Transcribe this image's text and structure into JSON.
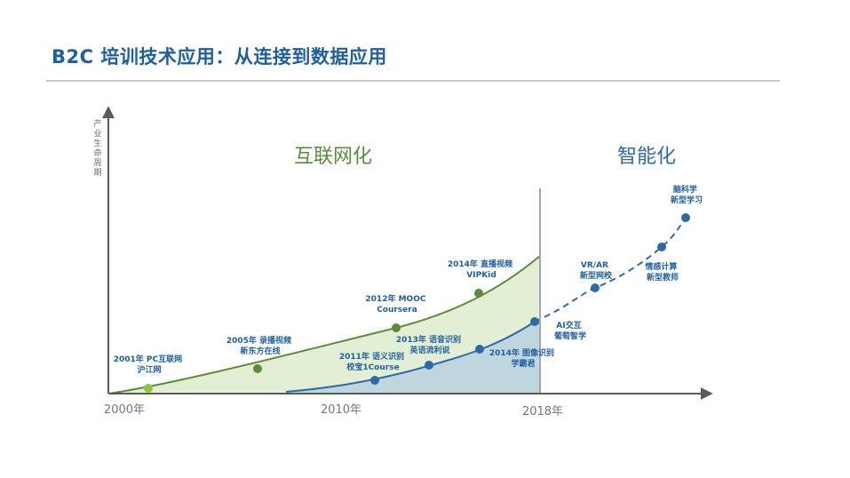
{
  "title": "B2C 培训技术应用：从连接到数据应用",
  "y_axis_label": "产业生命周期",
  "phases": {
    "internet": "互联网化",
    "intelligent": "智能化"
  },
  "years": [
    "2000年",
    "2010年",
    "2018年"
  ],
  "green_milestones": [
    {
      "line1": "2001年 PC互联网",
      "line2": "沪江网"
    },
    {
      "line1": "2005年 录播视频",
      "line2": "新东方在线"
    },
    {
      "line1": "2012年 MOOC",
      "line2": "Coursera"
    },
    {
      "line1": "2014年 直播视频",
      "line2": "VIPKid"
    }
  ],
  "blue_milestones": [
    {
      "line1": "2011年 语义识别",
      "line2": "校宝1Course"
    },
    {
      "line1": "2013年 语音识别",
      "line2": "英语流利说"
    },
    {
      "line1": "2014年 图像识别",
      "line2": "学霸君"
    },
    {
      "line1": "AI交互",
      "line2": "葡萄智学"
    },
    {
      "line1": "VR/AR",
      "line2": "新型网校"
    },
    {
      "line1": "情感计算",
      "line2": "新型教师"
    },
    {
      "line1": "脑科学",
      "line2": "新型学习"
    }
  ],
  "colors": {
    "title": "#1f5f9e",
    "green_line": "#5b8c3a",
    "green_fill": "#e2efd5",
    "blue_line": "#2f6aa8",
    "blue_fill": "#bcd3df",
    "dot_light_green": "#8dc63f"
  }
}
